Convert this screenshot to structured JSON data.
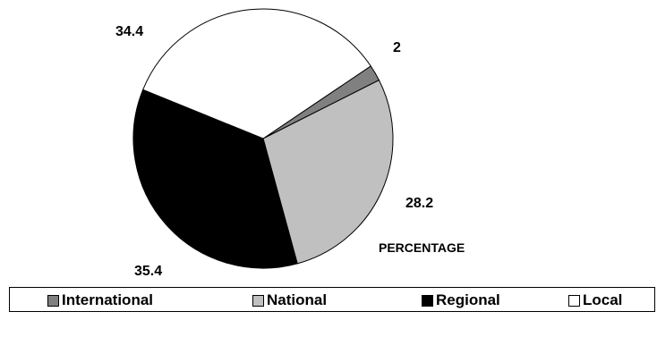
{
  "chart_data": {
    "type": "pie",
    "title": "PERCENTAGE",
    "slices": [
      {
        "label": "International",
        "value": 2,
        "color": "#808080"
      },
      {
        "label": "National",
        "value": 28.2,
        "color": "#c0c0c0"
      },
      {
        "label": "Regional",
        "value": 35.4,
        "color": "#000000"
      },
      {
        "label": "Local",
        "value": 34.4,
        "color": "#ffffff"
      }
    ],
    "data_labels": [
      "2",
      "28.2",
      "35.4",
      "34.4"
    ],
    "legend_position": "bottom"
  }
}
